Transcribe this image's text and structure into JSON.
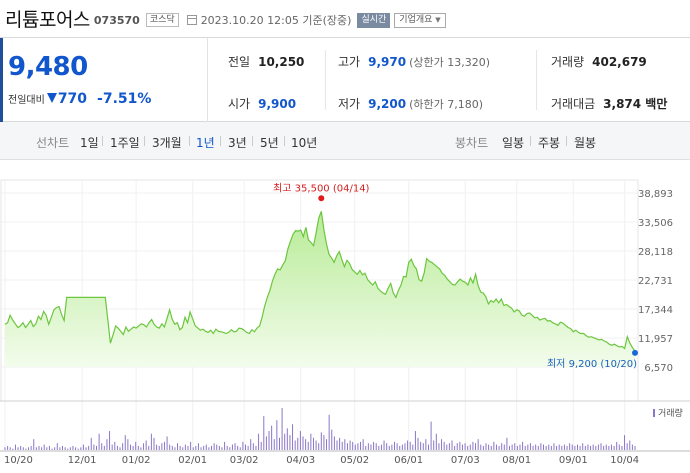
{
  "header": {
    "name": "리튬포어스",
    "code": "073570",
    "market": "코스닥",
    "datetime": "2023.10.20 12:05",
    "basis": "기준(장중)",
    "realtime": "실시간",
    "info_button": "기업개요"
  },
  "quote": {
    "price": "9,480",
    "change_label": "전일대비",
    "change": "770",
    "change_pct": "-7.51%",
    "prev_label": "전일",
    "prev": "10,250",
    "open_label": "시가",
    "open": "9,900",
    "high_label": "고가",
    "high": "9,970",
    "upper_limit": "(상한가 13,320)",
    "low_label": "저가",
    "low": "9,200",
    "lower_limit": "(하한가 7,180)",
    "volume_label": "거래량",
    "volume": "402,679",
    "amount_label": "거래대금",
    "amount": "3,874 백만"
  },
  "tabs": {
    "line_label": "선차트",
    "periods": [
      "1일",
      "1주일",
      "3개월",
      "1년",
      "3년",
      "5년",
      "10년"
    ],
    "active_period": "1년",
    "candle_label": "봉차트",
    "candles": [
      "일봉",
      "주봉",
      "월봉"
    ]
  },
  "chart_data": {
    "type": "area",
    "y_ticks": [
      6570,
      11957,
      17344,
      22731,
      28118,
      33506,
      38893
    ],
    "y_tick_labels": [
      "6,570",
      "11,957",
      "17,344",
      "22,731",
      "28,118",
      "33,506",
      "38,893"
    ],
    "ylim": [
      6570,
      38893
    ],
    "x_tick_labels": [
      "10/20",
      "12/01",
      "01/02",
      "02/01",
      "03/02",
      "04/03",
      "05/02",
      "06/01",
      "07/03",
      "08/01",
      "09/01",
      "10/04"
    ],
    "x_tick_index": [
      0,
      30,
      51,
      73,
      93,
      115,
      136,
      157,
      179,
      199,
      221,
      241
    ],
    "values": [
      14500,
      14800,
      16200,
      15300,
      14600,
      13900,
      14200,
      14800,
      13900,
      14500,
      15200,
      14100,
      14600,
      16000,
      15400,
      16900,
      16200,
      14500,
      15800,
      17200,
      17600,
      17800,
      16300,
      15200,
      19500,
      19500,
      19500,
      19500,
      19500,
      19500,
      19500,
      19500,
      19500,
      19500,
      19500,
      19500,
      19500,
      19500,
      19500,
      19500,
      15200,
      11000,
      12500,
      14200,
      13800,
      13200,
      12600,
      14000,
      13200,
      13600,
      14000,
      13800,
      14200,
      14600,
      14400,
      14000,
      14800,
      15400,
      14500,
      14000,
      13800,
      14600,
      14000,
      15600,
      17200,
      15500,
      14500,
      14800,
      13500,
      13900,
      15800,
      14800,
      16800,
      15500,
      14200,
      13800,
      13400,
      13600,
      13200,
      13000,
      13400,
      12800,
      13600,
      13200,
      13100,
      13000,
      12800,
      13000,
      13500,
      13100,
      13200,
      13800,
      13700,
      13400,
      13000,
      12800,
      13500,
      13100,
      13800,
      14200,
      15800,
      17900,
      19500,
      20800,
      22500,
      23800,
      24800,
      24600,
      25500,
      26300,
      28500,
      29900,
      31200,
      31900,
      31800,
      32000,
      30800,
      32500,
      30200,
      29700,
      29100,
      31500,
      34200,
      35500,
      32100,
      29500,
      27500,
      26800,
      26000,
      27200,
      28000,
      26500,
      25200,
      26400,
      25800,
      24700,
      24200,
      23800,
      24500,
      23700,
      24000,
      22800,
      22300,
      21800,
      22400,
      21200,
      20700,
      20300,
      20100,
      21200,
      22100,
      20300,
      19500,
      20800,
      21800,
      23400,
      23300,
      26000,
      26600,
      25400,
      24800,
      22800,
      22500,
      24000,
      26700,
      26200,
      26000,
      25600,
      25200,
      24800,
      24000,
      23600,
      22900,
      22400,
      21900,
      21800,
      22400,
      22900,
      22500,
      22300,
      21800,
      23100,
      22200,
      23800,
      21700,
      20500,
      20300,
      19600,
      18300,
      18900,
      18600,
      19200,
      18500,
      19200,
      18000,
      18200,
      17800,
      17500,
      16800,
      17200,
      17000,
      16200,
      16000,
      16500,
      16600,
      16200,
      15700,
      15800,
      15300,
      15500,
      15600,
      15100,
      15200,
      14800,
      14600,
      14300,
      14900,
      14700,
      14300,
      13900,
      13700,
      13100,
      13400,
      13000,
      12800,
      12800,
      12400,
      12100,
      12200,
      12000,
      11800,
      11600,
      11700,
      11400,
      11200,
      10800,
      10600,
      10800,
      10500,
      10300,
      10400,
      10000,
      12200,
      11000,
      10200,
      9480
    ],
    "high_annotation": "최고 35,500 (04/14)",
    "low_annotation": "최저 9,200 (10/20)",
    "volume_label": "거래량",
    "volume_values": [
      2,
      3,
      2,
      1,
      4,
      2,
      3,
      2,
      1,
      2,
      3,
      8,
      2,
      3,
      2,
      4,
      2,
      3,
      1,
      2,
      5,
      2,
      3,
      2,
      1,
      2,
      3,
      2,
      1,
      2,
      4,
      2,
      3,
      9,
      4,
      3,
      12,
      5,
      3,
      8,
      14,
      4,
      6,
      3,
      2,
      5,
      11,
      8,
      4,
      3,
      6,
      3,
      2,
      5,
      7,
      3,
      12,
      9,
      4,
      3,
      5,
      6,
      10,
      4,
      3,
      2,
      5,
      3,
      2,
      4,
      3,
      6,
      2,
      3,
      5,
      2,
      3,
      4,
      2,
      3,
      5,
      4,
      3,
      2,
      6,
      3,
      2,
      4,
      5,
      3,
      2,
      6,
      4,
      3,
      8,
      5,
      3,
      12,
      6,
      25,
      10,
      14,
      18,
      8,
      22,
      9,
      31,
      12,
      16,
      11,
      19,
      7,
      9,
      14,
      10,
      8,
      6,
      12,
      9,
      7,
      5,
      13,
      11,
      8,
      26,
      15,
      10,
      7,
      9,
      6,
      8,
      5,
      7,
      6,
      4,
      5,
      6,
      8,
      3,
      5,
      4,
      6,
      5,
      3,
      4,
      7,
      5,
      3,
      4,
      6,
      5,
      3,
      4,
      5,
      7,
      6,
      4,
      14,
      9,
      6,
      5,
      8,
      4,
      21,
      7,
      12,
      5,
      8,
      6,
      4,
      5,
      7,
      3,
      5,
      6,
      4,
      5,
      3,
      4,
      6,
      5,
      8,
      4,
      3,
      5,
      4,
      3,
      6,
      4,
      3,
      5,
      4,
      9,
      3,
      4,
      5,
      3,
      4,
      6,
      3,
      4,
      5,
      3,
      4,
      3,
      5,
      4,
      3,
      4,
      3,
      5,
      3,
      4,
      3,
      4,
      3,
      5,
      4,
      3,
      4,
      3,
      5,
      3,
      4,
      3,
      4,
      3,
      4,
      5,
      3,
      4,
      3,
      4,
      3,
      6,
      4,
      3,
      11,
      5,
      7,
      4,
      3
    ]
  }
}
